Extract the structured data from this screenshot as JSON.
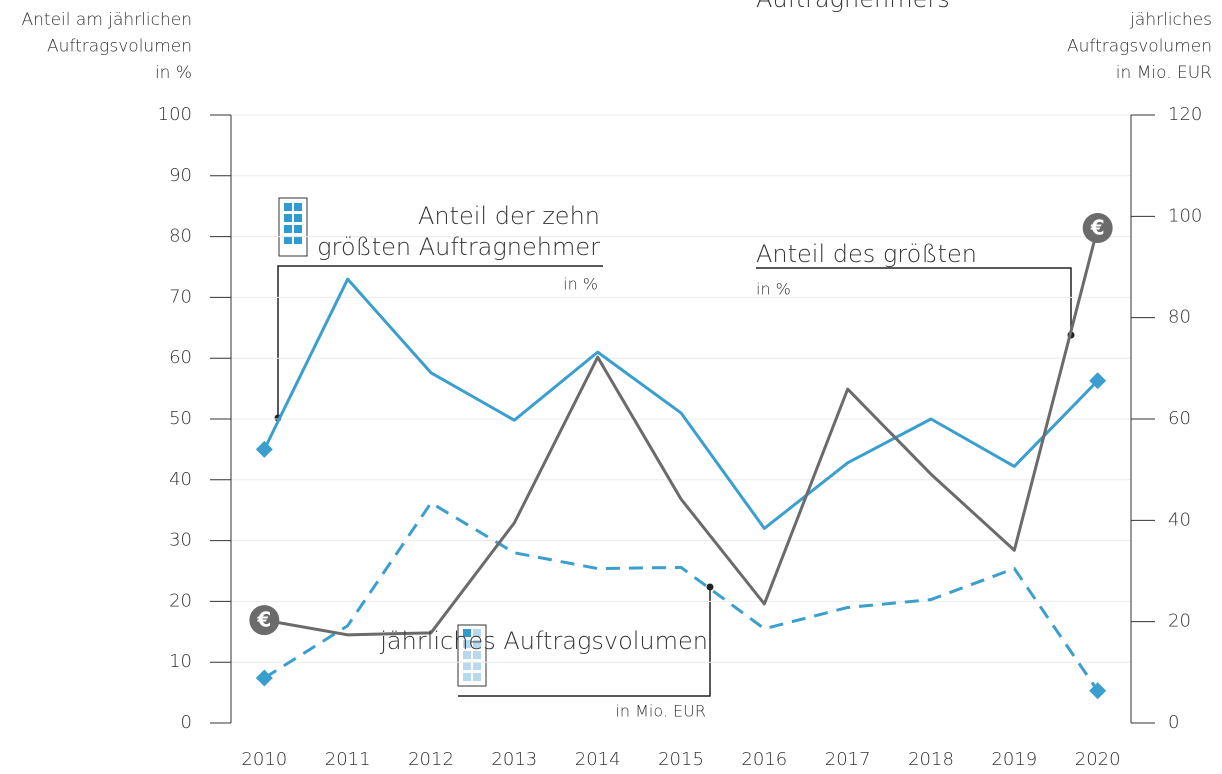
{
  "chart_data": {
    "type": "line",
    "y_label": [
      "Anteil am jährlichen",
      "Auftragsvolumen",
      "in %"
    ],
    "y2_label": [
      "jährliches",
      "Auftragsvolumen",
      "in Mio. EUR"
    ],
    "x": [
      2010,
      2011,
      2012,
      2013,
      2014,
      2015,
      2016,
      2017,
      2018,
      2019,
      2020
    ],
    "xlim": [
      2009.6,
      2020.4
    ],
    "xticks": [
      2010,
      2011,
      2012,
      2013,
      2014,
      2015,
      2016,
      2017,
      2018,
      2019,
      2020
    ],
    "ylim": [
      0,
      100
    ],
    "yticks": [
      0,
      10,
      20,
      30,
      40,
      50,
      60,
      70,
      80,
      90,
      100
    ],
    "y2lim": [
      0,
      120
    ],
    "y2ticks": [
      0,
      20,
      40,
      60,
      80,
      100,
      120
    ],
    "grid": true,
    "series": [
      {
        "name": [
          "Anteil der zehn",
          "größten Auftragnehmer"
        ],
        "unit": "in %",
        "color": "#3a9fcf",
        "line_style": "solid",
        "end_marker": "diamond",
        "values": [
          45,
          73,
          57.6,
          49.8,
          61,
          51,
          32,
          42.8,
          50,
          42.2,
          56.3
        ]
      },
      {
        "name": [
          "Anteil des größten",
          "Auftragnehmers"
        ],
        "unit": "in %",
        "color": "#3a9fcf",
        "line_style": "dashed",
        "end_marker": "diamond",
        "values": [
          7.4,
          16,
          36.2,
          28,
          25.4,
          25.6,
          15.5,
          19,
          20.3,
          25.4,
          5.3
        ]
      },
      {
        "name": [
          "jährliches Auftragsvolumen"
        ],
        "unit": "in Mio. EUR",
        "color": "#6b6b6b",
        "line_style": "solid",
        "end_marker": "€",
        "axis": "y2",
        "values": [
          20.3,
          17.4,
          17.8,
          39.5,
          72.2,
          44.2,
          23.5,
          65.9,
          49.1,
          34.1,
          97.7
        ]
      }
    ]
  }
}
